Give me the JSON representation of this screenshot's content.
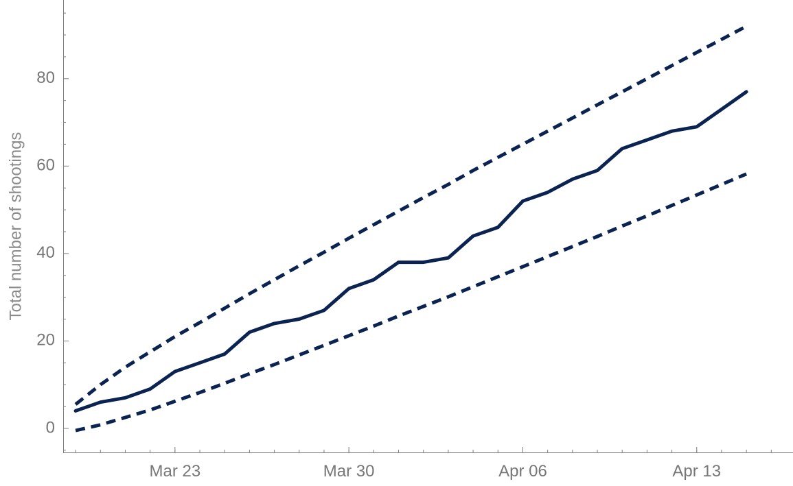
{
  "chart_data": {
    "type": "line",
    "title": "",
    "xlabel": "",
    "ylabel": "Total number of shootings",
    "x_tick_labels": [
      "Mar 23",
      "Mar 30",
      "Apr 06",
      "Apr 13"
    ],
    "x_ticks": [
      "2020-03-23",
      "2020-03-30",
      "2020-04-06",
      "2020-04-13"
    ],
    "y_ticks": [
      0,
      20,
      40,
      60,
      80
    ],
    "xlim": [
      "2020-03-18T12:00",
      "2020-04-16T21:00"
    ],
    "ylim": [
      -5.5,
      98
    ],
    "grid": false,
    "legend": "none",
    "colors": {
      "line": "#0a2351",
      "axis": "#7f7f7f",
      "tick_label": "#777777"
    },
    "series": [
      {
        "style": "solid",
        "x": [
          "2020-03-19",
          "2020-03-20",
          "2020-03-21",
          "2020-03-22",
          "2020-03-23",
          "2020-03-24",
          "2020-03-25",
          "2020-03-26",
          "2020-03-27",
          "2020-03-28",
          "2020-03-29",
          "2020-03-30",
          "2020-03-31",
          "2020-04-01",
          "2020-04-02",
          "2020-04-03",
          "2020-04-04",
          "2020-04-05",
          "2020-04-06",
          "2020-04-07",
          "2020-04-08",
          "2020-04-09",
          "2020-04-10",
          "2020-04-11",
          "2020-04-12",
          "2020-04-13",
          "2020-04-14",
          "2020-04-15"
        ],
        "values": [
          4,
          6,
          7,
          9,
          13,
          15,
          17,
          22,
          24,
          25,
          27,
          32,
          34,
          38,
          38,
          39,
          44,
          46,
          52,
          54,
          57,
          59,
          64,
          66,
          68,
          69,
          73,
          77
        ]
      },
      {
        "style": "dashed",
        "x": [
          "2020-03-19",
          "2020-03-20",
          "2020-03-21",
          "2020-03-22",
          "2020-03-23",
          "2020-03-24",
          "2020-03-25",
          "2020-03-26",
          "2020-03-27",
          "2020-03-28",
          "2020-03-29",
          "2020-03-30",
          "2020-03-31",
          "2020-04-01",
          "2020-04-02",
          "2020-04-03",
          "2020-04-04",
          "2020-04-05",
          "2020-04-06",
          "2020-04-07",
          "2020-04-08",
          "2020-04-09",
          "2020-04-10",
          "2020-04-11",
          "2020-04-12",
          "2020-04-13",
          "2020-04-14",
          "2020-04-15"
        ],
        "values": [
          5.5,
          10,
          14,
          17.5,
          21,
          24.2,
          27.5,
          30.8,
          34,
          37.2,
          40.3,
          43.5,
          46.6,
          49.7,
          52.8,
          55.8,
          59,
          62,
          65,
          68,
          71,
          74,
          77,
          80,
          83,
          86,
          89,
          92
        ]
      },
      {
        "style": "dashed",
        "x": [
          "2020-03-19",
          "2020-03-20",
          "2020-03-21",
          "2020-03-22",
          "2020-03-23",
          "2020-03-24",
          "2020-03-25",
          "2020-03-26",
          "2020-03-27",
          "2020-03-28",
          "2020-03-29",
          "2020-03-30",
          "2020-03-31",
          "2020-04-01",
          "2020-04-02",
          "2020-04-03",
          "2020-04-04",
          "2020-04-05",
          "2020-04-06",
          "2020-04-07",
          "2020-04-08",
          "2020-04-09",
          "2020-04-10",
          "2020-04-11",
          "2020-04-12",
          "2020-04-13",
          "2020-04-14",
          "2020-04-15"
        ],
        "values": [
          -0.5,
          0.8,
          2.5,
          4.2,
          6.2,
          8.2,
          10.3,
          12.5,
          14.6,
          16.8,
          19,
          21.2,
          23.4,
          25.7,
          27.9,
          30.1,
          32.4,
          34.7,
          37,
          39.3,
          41.6,
          43.9,
          46.3,
          48.6,
          51,
          53.4,
          55.8,
          58.2
        ]
      }
    ]
  }
}
